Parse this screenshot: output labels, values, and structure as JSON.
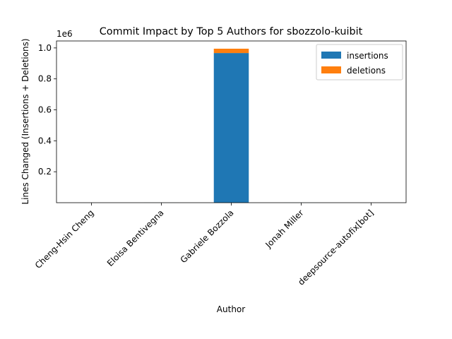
{
  "chart_data": {
    "type": "bar",
    "stacked": true,
    "title": "Commit Impact by Top 5 Authors for sbozzolo-kuibit",
    "xlabel": "Author",
    "ylabel": "Lines Changed (Insertions + Deletions)",
    "y_offset_label": "1e6",
    "categories": [
      "Cheng-Hsin Cheng",
      "Eloisa Bentivegna",
      "Gabriele Bozzola",
      "Jonah Miller",
      "deepsource-autofix[bot]"
    ],
    "series": [
      {
        "name": "insertions",
        "color": "#1f77b4",
        "values": [
          150,
          300,
          967000,
          250,
          20
        ]
      },
      {
        "name": "deletions",
        "color": "#ff7f0e",
        "values": [
          50,
          100,
          28000,
          60,
          20
        ]
      }
    ],
    "ylim": [
      0,
      1045000
    ],
    "yticks": [
      0.2,
      0.4,
      0.6,
      0.8,
      1.0
    ],
    "ytick_labels": [
      "0.2",
      "0.4",
      "0.6",
      "0.8",
      "1.0"
    ],
    "legend_position": "top-right",
    "grid": false
  }
}
